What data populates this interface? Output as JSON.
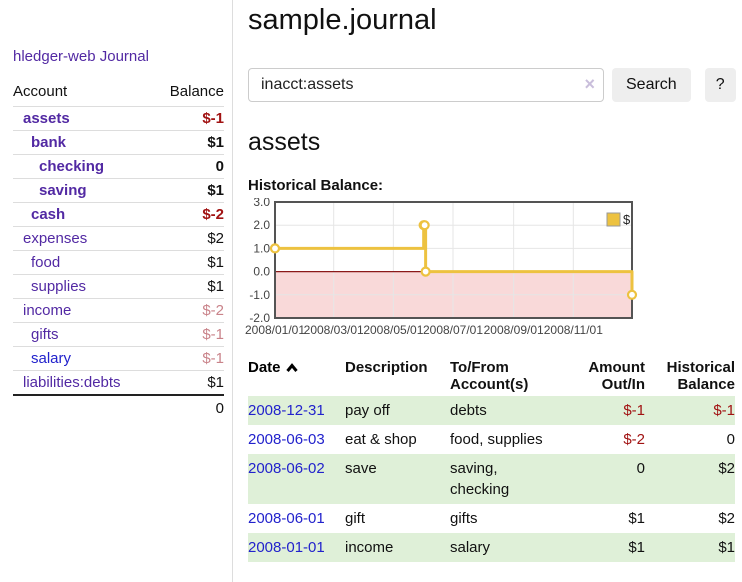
{
  "app": {
    "brand": "hledger-web"
  },
  "sidebar": {
    "journal_link": "Journal",
    "accounts": {
      "headers": {
        "account": "Account",
        "balance": "Balance"
      },
      "rows": [
        {
          "name": "assets",
          "depth": 1,
          "bold": true,
          "balance": "$-1",
          "balance_style": "neg-strong",
          "link_style": ""
        },
        {
          "name": "bank",
          "depth": 2,
          "bold": true,
          "balance": "$1",
          "balance_style": "",
          "link_style": ""
        },
        {
          "name": "checking",
          "depth": 3,
          "bold": true,
          "balance": "0",
          "balance_style": "",
          "link_style": ""
        },
        {
          "name": "saving",
          "depth": 3,
          "bold": true,
          "balance": "$1",
          "balance_style": "",
          "link_style": ""
        },
        {
          "name": "cash",
          "depth": 2,
          "bold": true,
          "balance": "$-2",
          "balance_style": "neg-strong",
          "link_style": ""
        },
        {
          "name": "expenses",
          "depth": 1,
          "bold": false,
          "balance": "$2",
          "balance_style": "",
          "link_style": ""
        },
        {
          "name": "food",
          "depth": 2,
          "bold": false,
          "balance": "$1",
          "balance_style": "",
          "link_style": ""
        },
        {
          "name": "supplies",
          "depth": 2,
          "bold": false,
          "balance": "$1",
          "balance_style": "",
          "link_style": ""
        },
        {
          "name": "income",
          "depth": 1,
          "bold": false,
          "balance": "$-2",
          "balance_style": "neg-pale",
          "link_style": ""
        },
        {
          "name": "gifts",
          "depth": 2,
          "bold": false,
          "balance": "$-1",
          "balance_style": "neg-pale",
          "link_style": ""
        },
        {
          "name": "salary",
          "depth": 2,
          "bold": false,
          "balance": "$-1",
          "balance_style": "neg-pale",
          "link_style": "blue"
        },
        {
          "name": "liabilities:debts",
          "depth": 1,
          "bold": false,
          "balance": "$1",
          "balance_style": "",
          "link_style": ""
        }
      ],
      "total": "0"
    }
  },
  "main": {
    "title": "sample.journal",
    "search": {
      "value": "inacct:assets",
      "clear_icon": "×",
      "button_label": "Search",
      "help_label": "?"
    },
    "account_heading": "assets",
    "chart_heading": "Historical Balance:",
    "register": {
      "headers": {
        "date": "Date",
        "description": "Description",
        "accounts": "To/From Account(s)",
        "amount": "Amount Out/In",
        "balance": "Historical Balance"
      },
      "rows": [
        {
          "date": "2008-12-31",
          "description": "pay off",
          "accounts": "debts",
          "amount": "$-1",
          "amount_style": "neg",
          "balance": "$-1",
          "balance_style": "neg",
          "shaded": true
        },
        {
          "date": "2008-06-03",
          "description": "eat & shop",
          "accounts": "food, supplies",
          "amount": "$-2",
          "amount_style": "neg",
          "balance": "0",
          "balance_style": "",
          "shaded": false
        },
        {
          "date": "2008-06-02",
          "description": "save",
          "accounts": "saving, checking",
          "amount": "0",
          "amount_style": "",
          "balance": "$2",
          "balance_style": "",
          "shaded": true
        },
        {
          "date": "2008-06-01",
          "description": "gift",
          "accounts": "gifts",
          "amount": "$1",
          "amount_style": "",
          "balance": "$2",
          "balance_style": "",
          "shaded": false
        },
        {
          "date": "2008-01-01",
          "description": "income",
          "accounts": "salary",
          "amount": "$1",
          "amount_style": "",
          "balance": "$1",
          "balance_style": "",
          "shaded": true
        }
      ]
    }
  },
  "chart_data": {
    "type": "line",
    "step": true,
    "title": "Historical Balance",
    "series": [
      {
        "name": "$",
        "color": "#edc240",
        "points": [
          [
            "2008-01-01",
            1
          ],
          [
            "2008-06-01",
            2
          ],
          [
            "2008-06-02",
            2
          ],
          [
            "2008-06-03",
            0
          ],
          [
            "2008-12-31",
            -1
          ]
        ]
      }
    ],
    "x_range": [
      "2008-01-01",
      "2008-12-31"
    ],
    "x_ticks": [
      "2008/01/01",
      "2008/03/01",
      "2008/05/01",
      "2008/07/01",
      "2008/09/01",
      "2008/11/01"
    ],
    "y_ticks": [
      3.0,
      2.0,
      1.0,
      0.0,
      -1.0,
      -2.0
    ],
    "ylim": [
      -2,
      3
    ],
    "grid": true,
    "legend": [
      "$"
    ],
    "legend_position": "top-right",
    "negative_region_color": "#f9d9d9",
    "zero_line_color": "#8b1a1a"
  },
  "colors": {
    "purple_link": "#5229a3",
    "blue_link": "#2222cc",
    "negative_strong": "#a11212",
    "negative_pale": "#c9838a",
    "shaded_row_green": "#dff0d8",
    "button_bg": "#eeeeee",
    "input_border": "#cccccc",
    "divider": "#dddddd",
    "series_gold": "#edc240"
  }
}
